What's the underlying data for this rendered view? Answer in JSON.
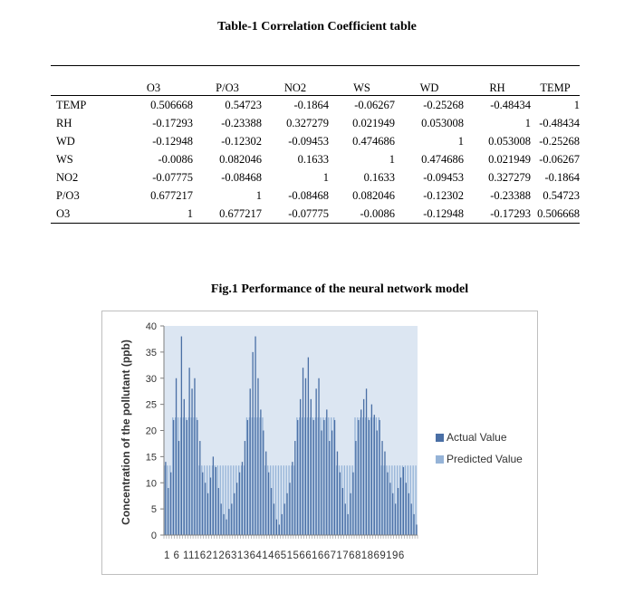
{
  "table": {
    "title": "Table-1 Correlation Coefficient table",
    "headers": [
      "",
      "O3",
      "P/O3",
      "NO2",
      "WS",
      "WD",
      "RH",
      "TEMP"
    ],
    "rows": [
      {
        "label": "TEMP",
        "values": [
          "0.506668",
          "0.54723",
          "-0.1864",
          "-0.06267",
          "-0.25268",
          "-0.48434",
          "1"
        ]
      },
      {
        "label": "RH",
        "values": [
          "-0.17293",
          "-0.23388",
          "0.327279",
          "0.021949",
          "0.053008",
          "1",
          "-0.48434"
        ]
      },
      {
        "label": "WD",
        "values": [
          "-0.12948",
          "-0.12302",
          "-0.09453",
          "0.474686",
          "1",
          "0.053008",
          "-0.25268"
        ]
      },
      {
        "label": "WS",
        "values": [
          "-0.0086",
          "0.082046",
          "0.1633",
          "1",
          "0.474686",
          "0.021949",
          "-0.06267"
        ]
      },
      {
        "label": "NO2",
        "values": [
          "-0.07775",
          "-0.08468",
          "1",
          "0.1633",
          "-0.09453",
          "0.327279",
          "-0.1864"
        ]
      },
      {
        "label": "P/O3",
        "values": [
          "0.677217",
          "1",
          "-0.08468",
          "0.082046",
          "-0.12302",
          "-0.23388",
          "0.54723"
        ]
      },
      {
        "label": "O3",
        "values": [
          "1",
          "0.677217",
          "-0.07775",
          "-0.0086",
          "-0.12948",
          "-0.17293",
          "0.506668"
        ]
      }
    ]
  },
  "figure": {
    "title": "Fig.1 Performance of the neural network model",
    "colors": {
      "actual": "#4a6fa5",
      "predicted": "#95b3d7",
      "plot_bg": "#dce6f2",
      "axis": "#7f7f7f"
    }
  },
  "chart_data": {
    "type": "bar",
    "ylabel": "Concentration of the pollutant (ppb)",
    "ylim": [
      0,
      40
    ],
    "yticks": [
      0,
      5,
      10,
      15,
      20,
      25,
      30,
      35,
      40
    ],
    "x_axis_text": "1 6 111621263136414651566166717681869196",
    "legend_position": "right",
    "series": [
      {
        "name": "Actual Value",
        "values": [
          14,
          9,
          12,
          22,
          30,
          18,
          38,
          26,
          22,
          32,
          28,
          30,
          22,
          18,
          12,
          10,
          8,
          11,
          15,
          13,
          9,
          6,
          4,
          3,
          5,
          6,
          8,
          10,
          12,
          14,
          18,
          22,
          28,
          35,
          38,
          30,
          24,
          20,
          16,
          12,
          9,
          6,
          3,
          2,
          4,
          6,
          8,
          10,
          14,
          18,
          22,
          26,
          32,
          30,
          34,
          26,
          22,
          28,
          30,
          20,
          22,
          24,
          18,
          20,
          22,
          16,
          12,
          9,
          6,
          4,
          8,
          12,
          18,
          22,
          24,
          26,
          28,
          22,
          25,
          23,
          20,
          22,
          18,
          16,
          12,
          10,
          8,
          6,
          9,
          11,
          13,
          10,
          8,
          6,
          4,
          2
        ]
      },
      {
        "name": "Predicted Value",
        "values": [
          13.3,
          13.3,
          13.3,
          22.5,
          22.5,
          22.5,
          22.5,
          22.5,
          22.5,
          22.5,
          22.5,
          22.5,
          22.5,
          13.3,
          13.3,
          13.3,
          13.3,
          13.3,
          13.3,
          13.3,
          13.3,
          13.3,
          13.3,
          13.3,
          13.3,
          13.3,
          13.3,
          13.3,
          13.3,
          13.3,
          13.3,
          22.5,
          22.5,
          22.5,
          22.5,
          22.5,
          22.5,
          22.5,
          13.3,
          13.3,
          13.3,
          13.3,
          13.3,
          13.3,
          13.3,
          13.3,
          13.3,
          13.3,
          13.3,
          13.3,
          22.5,
          22.5,
          22.5,
          22.5,
          22.5,
          22.5,
          22.5,
          22.5,
          22.5,
          22.5,
          22.5,
          22.5,
          22.5,
          22.5,
          22.5,
          13.3,
          13.3,
          13.3,
          13.3,
          13.3,
          13.3,
          13.3,
          22.5,
          22.5,
          22.5,
          22.5,
          22.5,
          22.5,
          22.5,
          22.5,
          22.5,
          22.5,
          13.3,
          13.3,
          13.3,
          13.3,
          13.3,
          13.3,
          13.3,
          13.3,
          13.3,
          13.3,
          13.3,
          13.3,
          13.3,
          13.3
        ]
      }
    ]
  }
}
